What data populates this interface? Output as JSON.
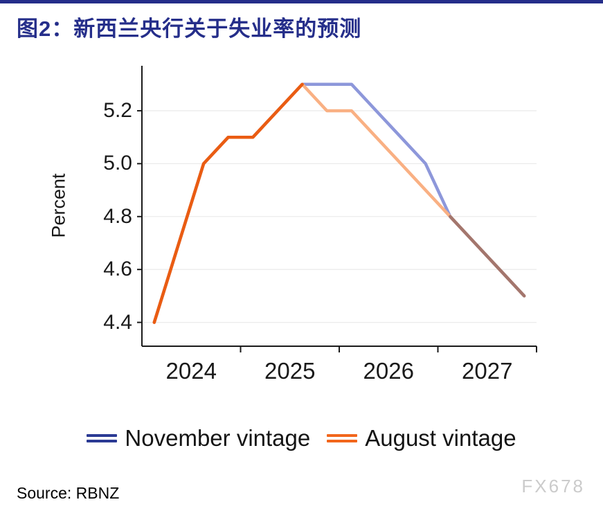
{
  "page": {
    "title": "图2：新西兰央行关于失业率的预测",
    "source": "Source: RBNZ",
    "watermark": "FX678",
    "accent_color": "#252e8a"
  },
  "chart_data": {
    "type": "line",
    "title": "图2：新西兰央行关于失业率的预测",
    "xlabel": "",
    "ylabel": "Percent",
    "ylim": [
      4.31,
      5.37
    ],
    "yticks": [
      4.4,
      4.6,
      4.8,
      5.0,
      5.2
    ],
    "x_labels": [
      "2024",
      "2025",
      "2026",
      "2027"
    ],
    "grid": "horizontal-only",
    "legend_position": "bottom-center",
    "categories": [
      "2024Q1",
      "2024Q2",
      "2024Q3",
      "2024Q4",
      "2025Q1",
      "2025Q2",
      "2025Q3",
      "2025Q4",
      "2026Q1",
      "2026Q2",
      "2026Q3",
      "2026Q4",
      "2027Q1",
      "2027Q2",
      "2027Q3",
      "2027Q4"
    ],
    "series": [
      {
        "name": "November vintage",
        "color": "#8d97da",
        "legend_color": "#2b3a94",
        "values": [
          4.4,
          4.7,
          5.0,
          5.1,
          5.1,
          5.2,
          5.3,
          5.3,
          5.3,
          5.2,
          5.1,
          5.0,
          4.8,
          4.7,
          4.6,
          4.5
        ]
      },
      {
        "name": "August vintage",
        "color": "#f9b083",
        "legend_color": "#f2661c",
        "values": [
          4.4,
          4.7,
          5.0,
          5.1,
          5.1,
          5.2,
          5.3,
          5.2,
          5.2,
          5.1,
          5.0,
          4.9,
          4.8,
          4.7,
          4.6,
          4.5
        ]
      }
    ],
    "overlap_segments": {
      "rise_color": "#ea5c12",
      "rise_end_index": 6,
      "tail_color": "#a3766d",
      "tail_start_index": 12
    },
    "axis_color": "#1a1a1a",
    "gridline_color": "#ebebeb"
  }
}
